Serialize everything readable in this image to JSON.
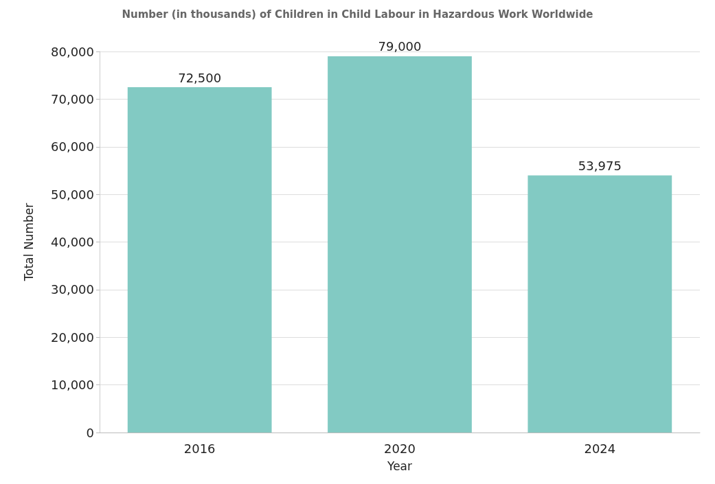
{
  "chart_data": {
    "type": "bar",
    "title": "Number (in thousands) of Children in Child Labour in Hazardous Work Worldwide",
    "xlabel": "Year",
    "ylabel": "Total Number",
    "categories": [
      "2016",
      "2020",
      "2024"
    ],
    "values": [
      72500,
      79000,
      53975
    ],
    "color": "#82cac3",
    "ylim": [
      0,
      80000
    ],
    "yticks": [
      {
        "value": 0,
        "label": "0"
      },
      {
        "value": 10000,
        "label": "10,000"
      },
      {
        "value": 20000,
        "label": "20,000"
      },
      {
        "value": 30000,
        "label": "30,000"
      },
      {
        "value": 40000,
        "label": "40,000"
      },
      {
        "value": 50000,
        "label": "50,000"
      },
      {
        "value": 60000,
        "label": "60,000"
      },
      {
        "value": 70000,
        "label": "70,000"
      },
      {
        "value": 80000,
        "label": "80,000"
      }
    ],
    "value_labels": [
      "72,500",
      "79,000",
      "53,975"
    ],
    "grid": "y"
  }
}
